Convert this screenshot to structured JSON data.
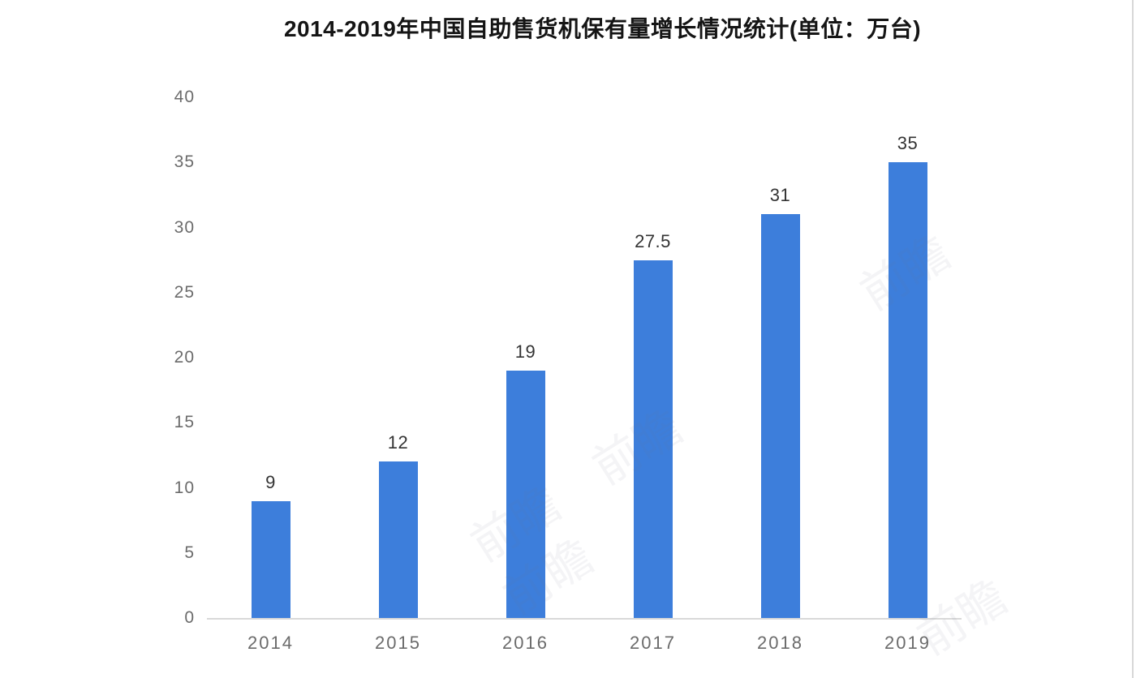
{
  "chart_data": {
    "type": "bar",
    "title": "2014-2019年中国自助售货机保有量增长情况统计(单位：万台)",
    "categories": [
      "2014",
      "2015",
      "2016",
      "2017",
      "2018",
      "2019"
    ],
    "values": [
      9,
      12,
      19,
      27.5,
      31,
      35
    ],
    "value_labels": [
      "9",
      "12",
      "19",
      "27.5",
      "31",
      "35"
    ],
    "xlabel": "",
    "ylabel": "",
    "ylim": [
      0,
      40
    ],
    "yticks": [
      0,
      5,
      10,
      15,
      20,
      25,
      30,
      35,
      40
    ],
    "unit": "万台",
    "bar_color": "#3d7edb",
    "axis_line_color": "#d9d9d9",
    "grid": "off",
    "legend": "none"
  },
  "watermark": {
    "text": "前瞻"
  }
}
